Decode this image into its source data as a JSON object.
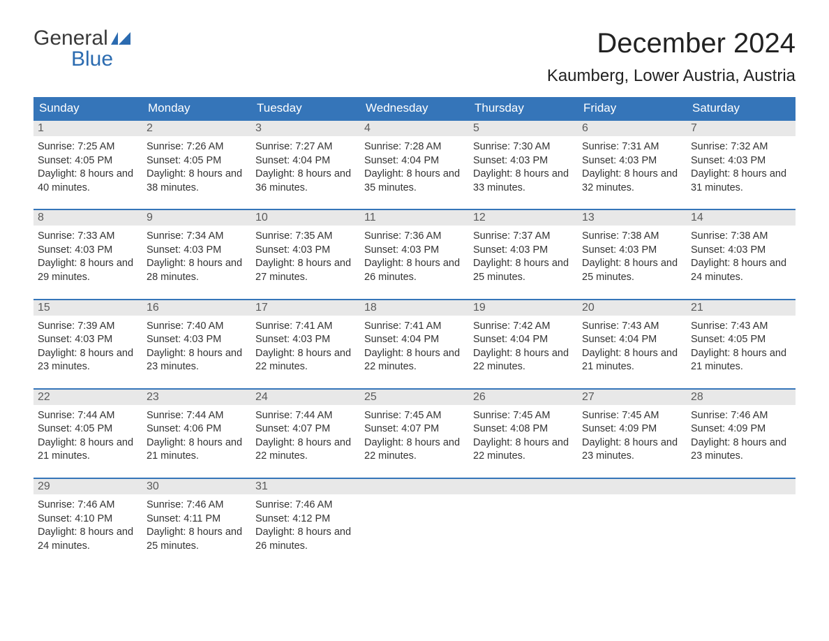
{
  "brand": {
    "word1": "General",
    "word2": "Blue",
    "icon_color": "#2b6bb0",
    "text_color_gray": "#3a3a3a",
    "text_color_blue": "#2b6bb0"
  },
  "header": {
    "month_title": "December 2024",
    "location": "Kaumberg, Lower Austria, Austria"
  },
  "styling": {
    "header_bg": "#3575b9",
    "header_text": "#ffffff",
    "daynum_bg": "#e8e8e8",
    "daynum_text": "#5a5a5a",
    "body_text": "#333333",
    "row_border": "#3575b9",
    "page_bg": "#ffffff",
    "month_title_fontsize": 40,
    "location_fontsize": 24,
    "weekday_fontsize": 17,
    "daynum_fontsize": 16,
    "body_fontsize": 14.5
  },
  "weekdays": [
    "Sunday",
    "Monday",
    "Tuesday",
    "Wednesday",
    "Thursday",
    "Friday",
    "Saturday"
  ],
  "labels": {
    "sunrise_prefix": "Sunrise: ",
    "sunset_prefix": "Sunset: ",
    "daylight_prefix": "Daylight: "
  },
  "days": [
    {
      "n": "1",
      "sunrise": "7:25 AM",
      "sunset": "4:05 PM",
      "daylight": "8 hours and 40 minutes."
    },
    {
      "n": "2",
      "sunrise": "7:26 AM",
      "sunset": "4:05 PM",
      "daylight": "8 hours and 38 minutes."
    },
    {
      "n": "3",
      "sunrise": "7:27 AM",
      "sunset": "4:04 PM",
      "daylight": "8 hours and 36 minutes."
    },
    {
      "n": "4",
      "sunrise": "7:28 AM",
      "sunset": "4:04 PM",
      "daylight": "8 hours and 35 minutes."
    },
    {
      "n": "5",
      "sunrise": "7:30 AM",
      "sunset": "4:03 PM",
      "daylight": "8 hours and 33 minutes."
    },
    {
      "n": "6",
      "sunrise": "7:31 AM",
      "sunset": "4:03 PM",
      "daylight": "8 hours and 32 minutes."
    },
    {
      "n": "7",
      "sunrise": "7:32 AM",
      "sunset": "4:03 PM",
      "daylight": "8 hours and 31 minutes."
    },
    {
      "n": "8",
      "sunrise": "7:33 AM",
      "sunset": "4:03 PM",
      "daylight": "8 hours and 29 minutes."
    },
    {
      "n": "9",
      "sunrise": "7:34 AM",
      "sunset": "4:03 PM",
      "daylight": "8 hours and 28 minutes."
    },
    {
      "n": "10",
      "sunrise": "7:35 AM",
      "sunset": "4:03 PM",
      "daylight": "8 hours and 27 minutes."
    },
    {
      "n": "11",
      "sunrise": "7:36 AM",
      "sunset": "4:03 PM",
      "daylight": "8 hours and 26 minutes."
    },
    {
      "n": "12",
      "sunrise": "7:37 AM",
      "sunset": "4:03 PM",
      "daylight": "8 hours and 25 minutes."
    },
    {
      "n": "13",
      "sunrise": "7:38 AM",
      "sunset": "4:03 PM",
      "daylight": "8 hours and 25 minutes."
    },
    {
      "n": "14",
      "sunrise": "7:38 AM",
      "sunset": "4:03 PM",
      "daylight": "8 hours and 24 minutes."
    },
    {
      "n": "15",
      "sunrise": "7:39 AM",
      "sunset": "4:03 PM",
      "daylight": "8 hours and 23 minutes."
    },
    {
      "n": "16",
      "sunrise": "7:40 AM",
      "sunset": "4:03 PM",
      "daylight": "8 hours and 23 minutes."
    },
    {
      "n": "17",
      "sunrise": "7:41 AM",
      "sunset": "4:03 PM",
      "daylight": "8 hours and 22 minutes."
    },
    {
      "n": "18",
      "sunrise": "7:41 AM",
      "sunset": "4:04 PM",
      "daylight": "8 hours and 22 minutes."
    },
    {
      "n": "19",
      "sunrise": "7:42 AM",
      "sunset": "4:04 PM",
      "daylight": "8 hours and 22 minutes."
    },
    {
      "n": "20",
      "sunrise": "7:43 AM",
      "sunset": "4:04 PM",
      "daylight": "8 hours and 21 minutes."
    },
    {
      "n": "21",
      "sunrise": "7:43 AM",
      "sunset": "4:05 PM",
      "daylight": "8 hours and 21 minutes."
    },
    {
      "n": "22",
      "sunrise": "7:44 AM",
      "sunset": "4:05 PM",
      "daylight": "8 hours and 21 minutes."
    },
    {
      "n": "23",
      "sunrise": "7:44 AM",
      "sunset": "4:06 PM",
      "daylight": "8 hours and 21 minutes."
    },
    {
      "n": "24",
      "sunrise": "7:44 AM",
      "sunset": "4:07 PM",
      "daylight": "8 hours and 22 minutes."
    },
    {
      "n": "25",
      "sunrise": "7:45 AM",
      "sunset": "4:07 PM",
      "daylight": "8 hours and 22 minutes."
    },
    {
      "n": "26",
      "sunrise": "7:45 AM",
      "sunset": "4:08 PM",
      "daylight": "8 hours and 22 minutes."
    },
    {
      "n": "27",
      "sunrise": "7:45 AM",
      "sunset": "4:09 PM",
      "daylight": "8 hours and 23 minutes."
    },
    {
      "n": "28",
      "sunrise": "7:46 AM",
      "sunset": "4:09 PM",
      "daylight": "8 hours and 23 minutes."
    },
    {
      "n": "29",
      "sunrise": "7:46 AM",
      "sunset": "4:10 PM",
      "daylight": "8 hours and 24 minutes."
    },
    {
      "n": "30",
      "sunrise": "7:46 AM",
      "sunset": "4:11 PM",
      "daylight": "8 hours and 25 minutes."
    },
    {
      "n": "31",
      "sunrise": "7:46 AM",
      "sunset": "4:12 PM",
      "daylight": "8 hours and 26 minutes."
    }
  ],
  "grid": {
    "leading_blanks": 0,
    "trailing_blanks": 4,
    "columns": 7
  }
}
